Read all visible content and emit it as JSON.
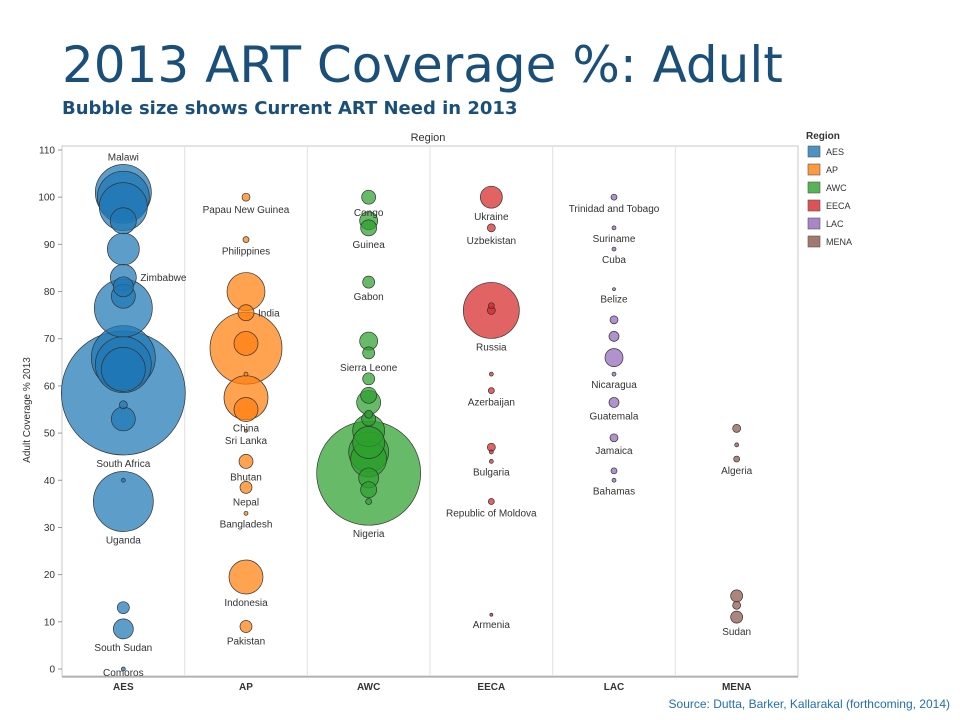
{
  "slide": {
    "title": "2013 ART Coverage %: Adult",
    "subtitle": "Bubble size shows Current ART Need in 2013",
    "source": "Source: Dutta, Barker, Kallarakal (forthcoming, 2014)"
  },
  "chart_data": {
    "type": "scatter",
    "header": "Region",
    "ylabel": "Adult Coverage % 2013",
    "ylim": [
      0,
      110
    ],
    "yticks": [
      0,
      10,
      20,
      30,
      40,
      50,
      60,
      70,
      80,
      90,
      100,
      110
    ],
    "grid": false,
    "legend": {
      "title": "Region",
      "position": "right"
    },
    "categories": [
      "AES",
      "AP",
      "AWC",
      "EECA",
      "LAC",
      "MENA"
    ],
    "colors": {
      "AES": "#1f77b4",
      "AP": "#ff7f0e",
      "AWC": "#2ca02c",
      "EECA": "#d62728",
      "LAC": "#9467bd",
      "MENA": "#8c564b"
    },
    "size_note": "relative bubble size = current ART need (no scale printed)",
    "series": [
      {
        "name": "AES",
        "points": [
          {
            "y": 101,
            "size": 28,
            "label": "Malawi"
          },
          {
            "y": 100,
            "size": 26
          },
          {
            "y": 98,
            "size": 24
          },
          {
            "y": 95,
            "size": 13
          },
          {
            "y": 89,
            "size": 16
          },
          {
            "y": 83,
            "size": 13,
            "label": "Zimbabwe"
          },
          {
            "y": 81,
            "size": 10
          },
          {
            "y": 79,
            "size": 12
          },
          {
            "y": 76.5,
            "size": 29
          },
          {
            "y": 66,
            "size": 32
          },
          {
            "y": 64.5,
            "size": 28
          },
          {
            "y": 63.5,
            "size": 22
          },
          {
            "y": 58.5,
            "size": 62,
            "label": "South Africa"
          },
          {
            "y": 56,
            "size": 4
          },
          {
            "y": 53,
            "size": 12
          },
          {
            "y": 40,
            "size": 2
          },
          {
            "y": 35.5,
            "size": 30,
            "label": "Uganda"
          },
          {
            "y": 13,
            "size": 6
          },
          {
            "y": 8.5,
            "size": 10,
            "label": "South Sudan"
          },
          {
            "y": 0,
            "size": 2,
            "label": "Comoros"
          }
        ]
      },
      {
        "name": "AP",
        "points": [
          {
            "y": 100,
            "size": 4,
            "label": "Papau New Guinea"
          },
          {
            "y": 91,
            "size": 3,
            "label": "Philippines"
          },
          {
            "y": 80,
            "size": 19
          },
          {
            "y": 75.5,
            "size": 8,
            "label": "India"
          },
          {
            "y": 68,
            "size": 36
          },
          {
            "y": 69,
            "size": 12
          },
          {
            "y": 62.5,
            "size": 2
          },
          {
            "y": 57.5,
            "size": 22,
            "label": "China"
          },
          {
            "y": 55,
            "size": 12
          },
          {
            "y": 50.5,
            "size": 1.5,
            "label": "Sri Lanka"
          },
          {
            "y": 44,
            "size": 7,
            "label": "Bhutan"
          },
          {
            "y": 38.5,
            "size": 6,
            "label": "Nepal"
          },
          {
            "y": 33,
            "size": 2,
            "label": "Bangladesh"
          },
          {
            "y": 19.5,
            "size": 17,
            "label": "Indonesia"
          },
          {
            "y": 9,
            "size": 6,
            "label": "Pakistan"
          }
        ]
      },
      {
        "name": "AWC",
        "points": [
          {
            "y": 100,
            "size": 7,
            "label": "Congo"
          },
          {
            "y": 95,
            "size": 9
          },
          {
            "y": 93.5,
            "size": 8,
            "label": "Guinea"
          },
          {
            "y": 82,
            "size": 6,
            "label": "Gabon"
          },
          {
            "y": 69.5,
            "size": 9
          },
          {
            "y": 67,
            "size": 6,
            "label": "Sierra Leone"
          },
          {
            "y": 61.5,
            "size": 6
          },
          {
            "y": 58,
            "size": 8
          },
          {
            "y": 56.5,
            "size": 12
          },
          {
            "y": 54,
            "size": 4
          },
          {
            "y": 53,
            "size": 7
          },
          {
            "y": 50.5,
            "size": 16
          },
          {
            "y": 48,
            "size": 16
          },
          {
            "y": 46,
            "size": 20
          },
          {
            "y": 44.5,
            "size": 18
          },
          {
            "y": 41.5,
            "size": 52,
            "label": "Nigeria"
          },
          {
            "y": 40.5,
            "size": 10
          },
          {
            "y": 38,
            "size": 8
          },
          {
            "y": 35.5,
            "size": 3
          }
        ]
      },
      {
        "name": "EECA",
        "points": [
          {
            "y": 100,
            "size": 11,
            "label": "Ukraine"
          },
          {
            "y": 93.5,
            "size": 4,
            "label": "Uzbekistan"
          },
          {
            "y": 76,
            "size": 28,
            "label": "Russia"
          },
          {
            "y": 77,
            "size": 3
          },
          {
            "y": 76,
            "size": 4
          },
          {
            "y": 62.5,
            "size": 2
          },
          {
            "y": 59,
            "size": 3,
            "label": "Azerbaijan"
          },
          {
            "y": 47,
            "size": 4
          },
          {
            "y": 46,
            "size": 2
          },
          {
            "y": 44,
            "size": 2,
            "label": "Bulgaria"
          },
          {
            "y": 35.5,
            "size": 3,
            "label": "Republic of Moldova"
          },
          {
            "y": 11.5,
            "size": 1.5,
            "label": "Armenia"
          }
        ]
      },
      {
        "name": "LAC",
        "points": [
          {
            "y": 100,
            "size": 3,
            "label": "Trinidad and Tobago"
          },
          {
            "y": 93.5,
            "size": 2,
            "label": "Suriname"
          },
          {
            "y": 89,
            "size": 2,
            "label": "Cuba"
          },
          {
            "y": 80.5,
            "size": 1.5,
            "label": "Belize"
          },
          {
            "y": 74,
            "size": 4
          },
          {
            "y": 70.5,
            "size": 5
          },
          {
            "y": 66,
            "size": 9
          },
          {
            "y": 62.5,
            "size": 2,
            "label": "Nicaragua"
          },
          {
            "y": 56.5,
            "size": 5,
            "label": "Guatemala"
          },
          {
            "y": 49,
            "size": 4,
            "label": "Jamaica"
          },
          {
            "y": 42,
            "size": 3
          },
          {
            "y": 40,
            "size": 2,
            "label": "Bahamas"
          }
        ]
      },
      {
        "name": "MENA",
        "points": [
          {
            "y": 51,
            "size": 4
          },
          {
            "y": 47.5,
            "size": 2
          },
          {
            "y": 44.5,
            "size": 3,
            "label": "Algeria"
          },
          {
            "y": 15.5,
            "size": 6
          },
          {
            "y": 13.5,
            "size": 4
          },
          {
            "y": 11,
            "size": 6,
            "label": "Sudan"
          }
        ]
      }
    ]
  }
}
